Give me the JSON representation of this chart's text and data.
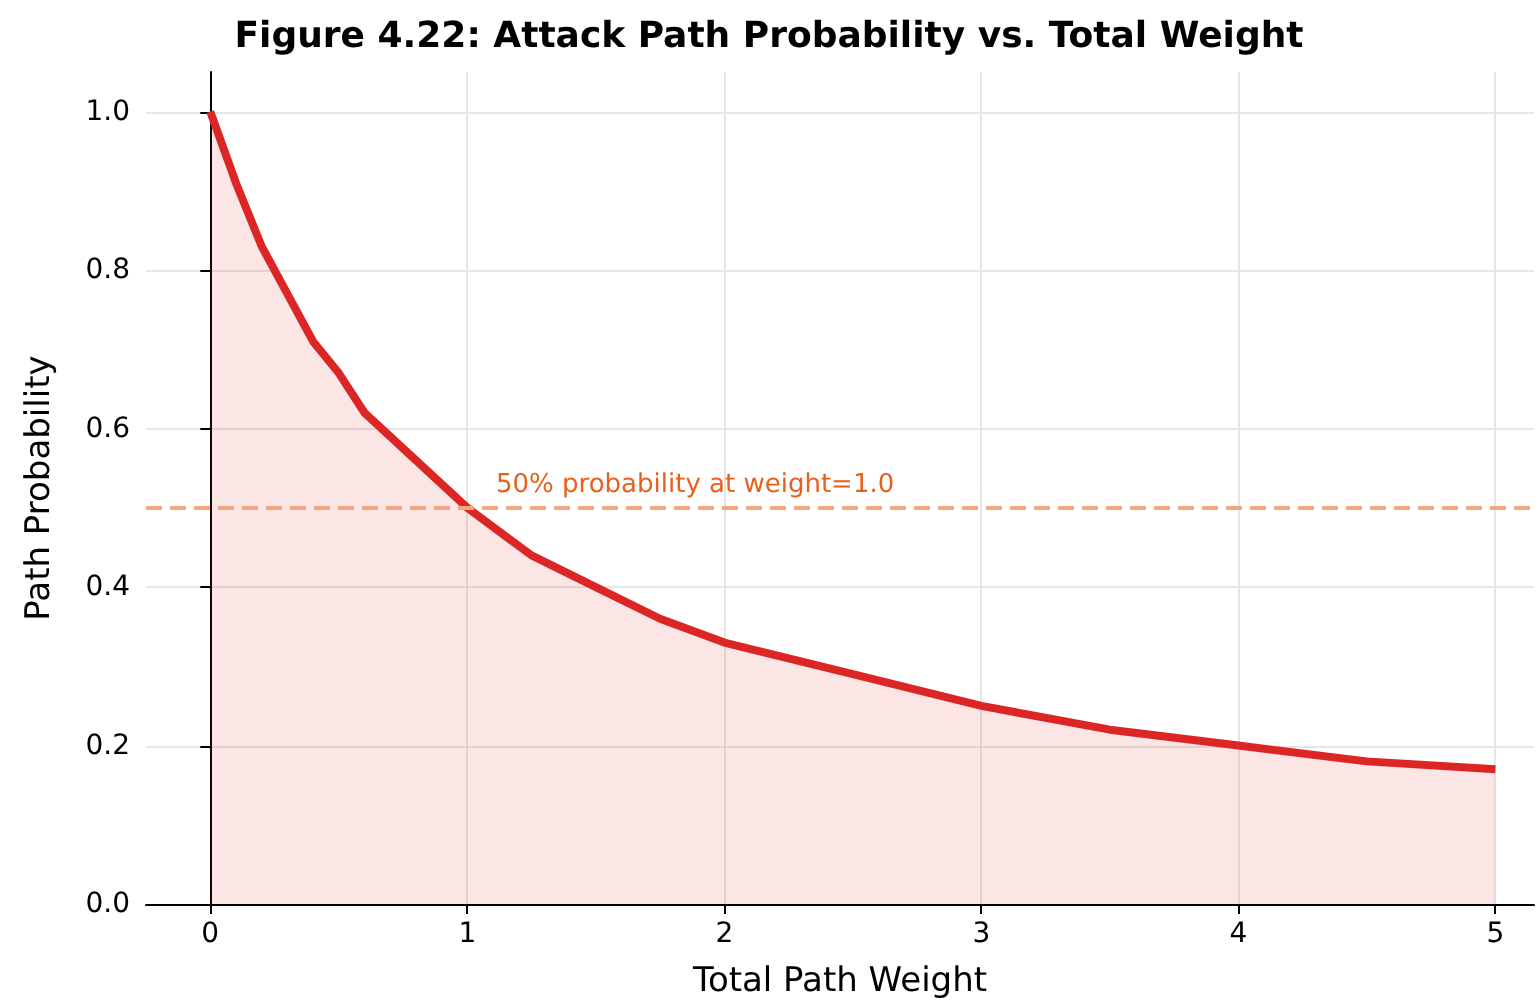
{
  "chart_data": {
    "type": "area",
    "title": "Figure 4.22: Attack Path Probability vs. Total Weight",
    "xlabel": "Total Path Weight",
    "ylabel": "Path Probability",
    "x": [
      0,
      0.1,
      0.2,
      0.3,
      0.4,
      0.5,
      0.6,
      0.8,
      1,
      1.25,
      1.5,
      1.75,
      2,
      2.5,
      3,
      3.5,
      4,
      4.5,
      5
    ],
    "series": [
      {
        "color": "#dc2626",
        "values": [
          1,
          0.91,
          0.83,
          0.77,
          0.71,
          0.67,
          0.62,
          0.56,
          0.5,
          0.44,
          0.4,
          0.36,
          0.33,
          0.29,
          0.25,
          0.22,
          0.2,
          0.18,
          0.17
        ]
      }
    ],
    "xlim": [
      -0.25,
      5.15
    ],
    "xticks": [
      0,
      1,
      2,
      3,
      4,
      5
    ],
    "ylim": [
      0,
      1.05
    ],
    "yticks": [
      {
        "value": 0,
        "label": "0.0"
      },
      0.2,
      0.4,
      0.6,
      0.8,
      {
        "value": 1,
        "label": "1.0"
      }
    ],
    "ref_lines": [
      {
        "axis": "y",
        "value": 0.5,
        "label": "50% probability at weight=1.0",
        "color": "#f4a582",
        "line_style": "dashed"
      }
    ],
    "grid": true
  }
}
